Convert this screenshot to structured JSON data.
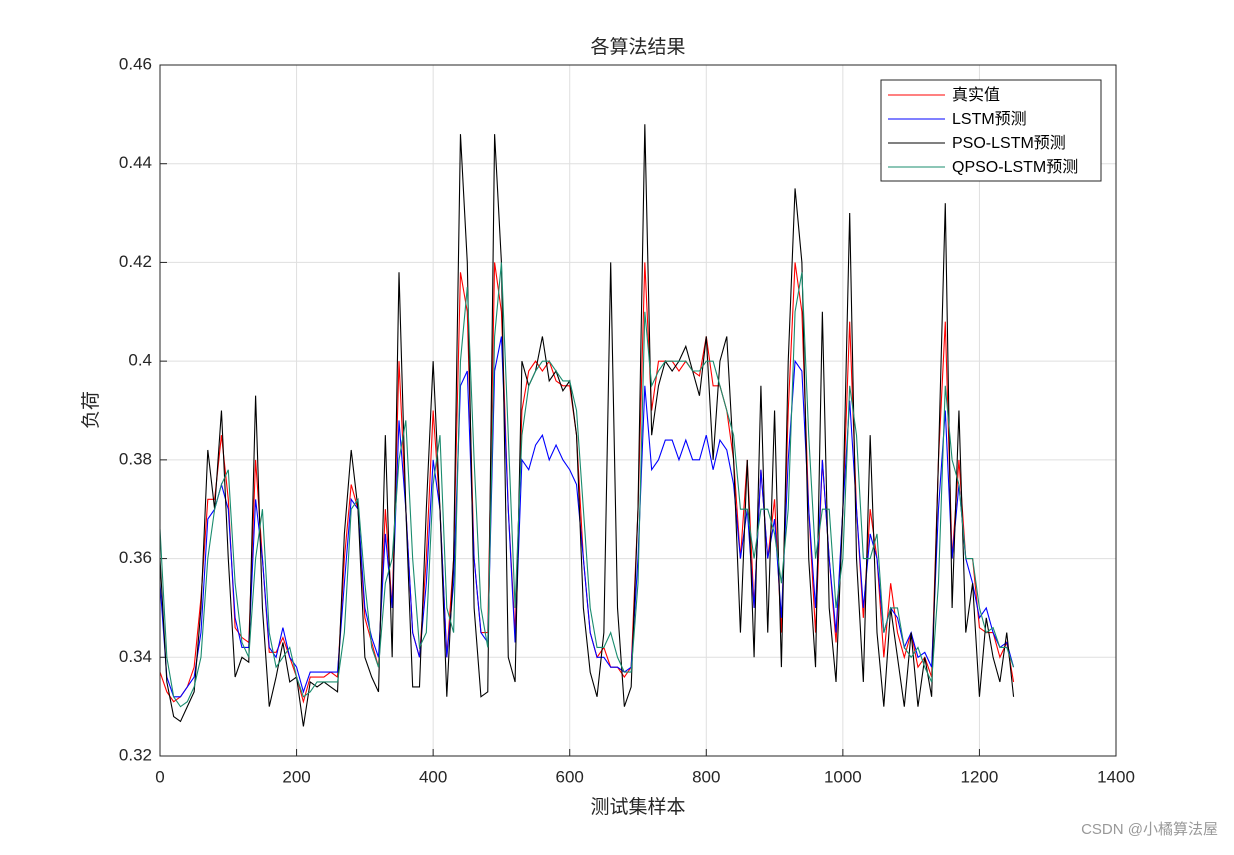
{
  "chart_data": {
    "type": "line",
    "title": "各算法结果",
    "x_label": "测试集样本",
    "y_label": "负荷",
    "watermark": "CSDN @小橘算法屋",
    "xlim": [
      0,
      1400
    ],
    "xticks": [
      0,
      200,
      400,
      600,
      800,
      1000,
      1200,
      1400
    ],
    "ylim": [
      0.32,
      0.46
    ],
    "yticks": [
      0.32,
      0.34,
      0.36,
      0.38,
      0.4,
      0.42,
      0.44,
      0.46
    ],
    "grid": true,
    "legend": "northeast",
    "x": [
      0,
      10,
      20,
      30,
      40,
      50,
      60,
      70,
      80,
      90,
      100,
      110,
      120,
      130,
      140,
      150,
      160,
      170,
      180,
      190,
      200,
      210,
      220,
      230,
      240,
      250,
      260,
      270,
      280,
      290,
      300,
      310,
      320,
      330,
      340,
      350,
      360,
      370,
      380,
      390,
      400,
      410,
      420,
      430,
      440,
      450,
      460,
      470,
      480,
      490,
      500,
      510,
      520,
      530,
      540,
      550,
      560,
      570,
      580,
      590,
      600,
      610,
      620,
      630,
      640,
      650,
      660,
      670,
      680,
      690,
      700,
      710,
      720,
      730,
      740,
      750,
      760,
      770,
      780,
      790,
      800,
      810,
      820,
      830,
      840,
      850,
      860,
      870,
      880,
      890,
      900,
      910,
      920,
      930,
      940,
      950,
      960,
      970,
      980,
      990,
      1000,
      1010,
      1020,
      1030,
      1040,
      1050,
      1060,
      1070,
      1080,
      1090,
      1100,
      1110,
      1120,
      1130,
      1140,
      1150,
      1160,
      1170,
      1180,
      1190,
      1200,
      1210,
      1220,
      1230,
      1240,
      1250
    ],
    "series": [
      {
        "name": "真实值",
        "color": "#ff0000",
        "values": [
          0.337,
          0.333,
          0.331,
          0.332,
          0.334,
          0.338,
          0.352,
          0.372,
          0.372,
          0.385,
          0.372,
          0.346,
          0.344,
          0.343,
          0.38,
          0.36,
          0.341,
          0.341,
          0.344,
          0.34,
          0.336,
          0.331,
          0.336,
          0.336,
          0.336,
          0.337,
          0.336,
          0.36,
          0.375,
          0.37,
          0.348,
          0.343,
          0.338,
          0.37,
          0.35,
          0.4,
          0.37,
          0.345,
          0.34,
          0.36,
          0.39,
          0.37,
          0.34,
          0.36,
          0.418,
          0.41,
          0.36,
          0.345,
          0.345,
          0.42,
          0.41,
          0.37,
          0.345,
          0.39,
          0.398,
          0.4,
          0.398,
          0.4,
          0.396,
          0.395,
          0.395,
          0.385,
          0.36,
          0.345,
          0.34,
          0.342,
          0.338,
          0.338,
          0.336,
          0.338,
          0.37,
          0.42,
          0.39,
          0.4,
          0.4,
          0.4,
          0.398,
          0.4,
          0.398,
          0.397,
          0.405,
          0.395,
          0.395,
          0.39,
          0.38,
          0.36,
          0.38,
          0.35,
          0.378,
          0.36,
          0.372,
          0.345,
          0.39,
          0.42,
          0.41,
          0.37,
          0.345,
          0.38,
          0.36,
          0.343,
          0.37,
          0.408,
          0.37,
          0.348,
          0.37,
          0.36,
          0.34,
          0.355,
          0.345,
          0.34,
          0.345,
          0.338,
          0.34,
          0.336,
          0.38,
          0.408,
          0.36,
          0.38,
          0.36,
          0.36,
          0.346,
          0.345,
          0.345,
          0.34,
          0.343,
          0.335
        ]
      },
      {
        "name": "LSTM预测",
        "color": "#0000ff",
        "values": [
          0.355,
          0.336,
          0.332,
          0.332,
          0.334,
          0.336,
          0.345,
          0.368,
          0.37,
          0.375,
          0.37,
          0.348,
          0.342,
          0.342,
          0.372,
          0.36,
          0.342,
          0.34,
          0.346,
          0.34,
          0.338,
          0.333,
          0.337,
          0.337,
          0.337,
          0.337,
          0.337,
          0.355,
          0.372,
          0.37,
          0.35,
          0.344,
          0.34,
          0.365,
          0.35,
          0.388,
          0.37,
          0.345,
          0.34,
          0.355,
          0.38,
          0.37,
          0.34,
          0.355,
          0.395,
          0.398,
          0.36,
          0.345,
          0.343,
          0.398,
          0.405,
          0.37,
          0.343,
          0.38,
          0.378,
          0.383,
          0.385,
          0.38,
          0.383,
          0.38,
          0.378,
          0.375,
          0.36,
          0.345,
          0.34,
          0.34,
          0.338,
          0.338,
          0.337,
          0.338,
          0.36,
          0.395,
          0.378,
          0.38,
          0.384,
          0.384,
          0.38,
          0.384,
          0.38,
          0.38,
          0.385,
          0.378,
          0.384,
          0.382,
          0.375,
          0.36,
          0.37,
          0.35,
          0.378,
          0.36,
          0.368,
          0.348,
          0.38,
          0.4,
          0.398,
          0.37,
          0.35,
          0.38,
          0.36,
          0.345,
          0.37,
          0.392,
          0.37,
          0.35,
          0.365,
          0.36,
          0.345,
          0.35,
          0.348,
          0.342,
          0.345,
          0.34,
          0.341,
          0.338,
          0.37,
          0.39,
          0.36,
          0.375,
          0.36,
          0.355,
          0.348,
          0.35,
          0.345,
          0.342,
          0.343,
          0.338
        ]
      },
      {
        "name": "PSO-LSTM预测",
        "color": "#000000",
        "values": [
          0.36,
          0.335,
          0.328,
          0.327,
          0.33,
          0.333,
          0.35,
          0.382,
          0.37,
          0.39,
          0.36,
          0.336,
          0.34,
          0.339,
          0.393,
          0.35,
          0.33,
          0.336,
          0.343,
          0.335,
          0.336,
          0.326,
          0.335,
          0.334,
          0.335,
          0.334,
          0.333,
          0.365,
          0.382,
          0.37,
          0.34,
          0.336,
          0.333,
          0.385,
          0.34,
          0.418,
          0.37,
          0.334,
          0.334,
          0.37,
          0.4,
          0.37,
          0.332,
          0.36,
          0.446,
          0.42,
          0.35,
          0.332,
          0.333,
          0.446,
          0.42,
          0.34,
          0.335,
          0.4,
          0.395,
          0.398,
          0.405,
          0.396,
          0.398,
          0.394,
          0.396,
          0.385,
          0.35,
          0.337,
          0.332,
          0.345,
          0.42,
          0.35,
          0.33,
          0.334,
          0.37,
          0.448,
          0.385,
          0.395,
          0.4,
          0.398,
          0.4,
          0.403,
          0.398,
          0.393,
          0.405,
          0.38,
          0.4,
          0.405,
          0.38,
          0.345,
          0.38,
          0.34,
          0.395,
          0.345,
          0.39,
          0.338,
          0.4,
          0.435,
          0.42,
          0.36,
          0.338,
          0.41,
          0.35,
          0.335,
          0.37,
          0.43,
          0.36,
          0.335,
          0.385,
          0.345,
          0.33,
          0.35,
          0.34,
          0.33,
          0.345,
          0.33,
          0.34,
          0.332,
          0.38,
          0.432,
          0.35,
          0.39,
          0.345,
          0.355,
          0.332,
          0.348,
          0.34,
          0.335,
          0.345,
          0.332
        ]
      },
      {
        "name": "QPSO-LSTM预测",
        "color": "#1a8c6e",
        "values": [
          0.366,
          0.34,
          0.332,
          0.33,
          0.331,
          0.334,
          0.34,
          0.36,
          0.37,
          0.375,
          0.378,
          0.355,
          0.343,
          0.34,
          0.36,
          0.37,
          0.345,
          0.338,
          0.34,
          0.342,
          0.336,
          0.332,
          0.333,
          0.335,
          0.335,
          0.335,
          0.335,
          0.345,
          0.37,
          0.372,
          0.355,
          0.342,
          0.338,
          0.355,
          0.36,
          0.38,
          0.388,
          0.36,
          0.342,
          0.345,
          0.375,
          0.385,
          0.35,
          0.345,
          0.4,
          0.415,
          0.38,
          0.35,
          0.342,
          0.405,
          0.42,
          0.385,
          0.35,
          0.385,
          0.395,
          0.398,
          0.4,
          0.4,
          0.398,
          0.396,
          0.396,
          0.39,
          0.37,
          0.35,
          0.342,
          0.342,
          0.345,
          0.34,
          0.337,
          0.337,
          0.355,
          0.41,
          0.395,
          0.398,
          0.4,
          0.4,
          0.4,
          0.4,
          0.398,
          0.398,
          0.4,
          0.4,
          0.395,
          0.39,
          0.385,
          0.37,
          0.37,
          0.36,
          0.37,
          0.37,
          0.365,
          0.355,
          0.37,
          0.41,
          0.418,
          0.385,
          0.36,
          0.37,
          0.37,
          0.35,
          0.36,
          0.395,
          0.385,
          0.36,
          0.36,
          0.365,
          0.345,
          0.35,
          0.35,
          0.342,
          0.34,
          0.342,
          0.338,
          0.335,
          0.355,
          0.395,
          0.38,
          0.375,
          0.36,
          0.36,
          0.35,
          0.345,
          0.346,
          0.342,
          0.342,
          0.338
        ]
      }
    ]
  }
}
